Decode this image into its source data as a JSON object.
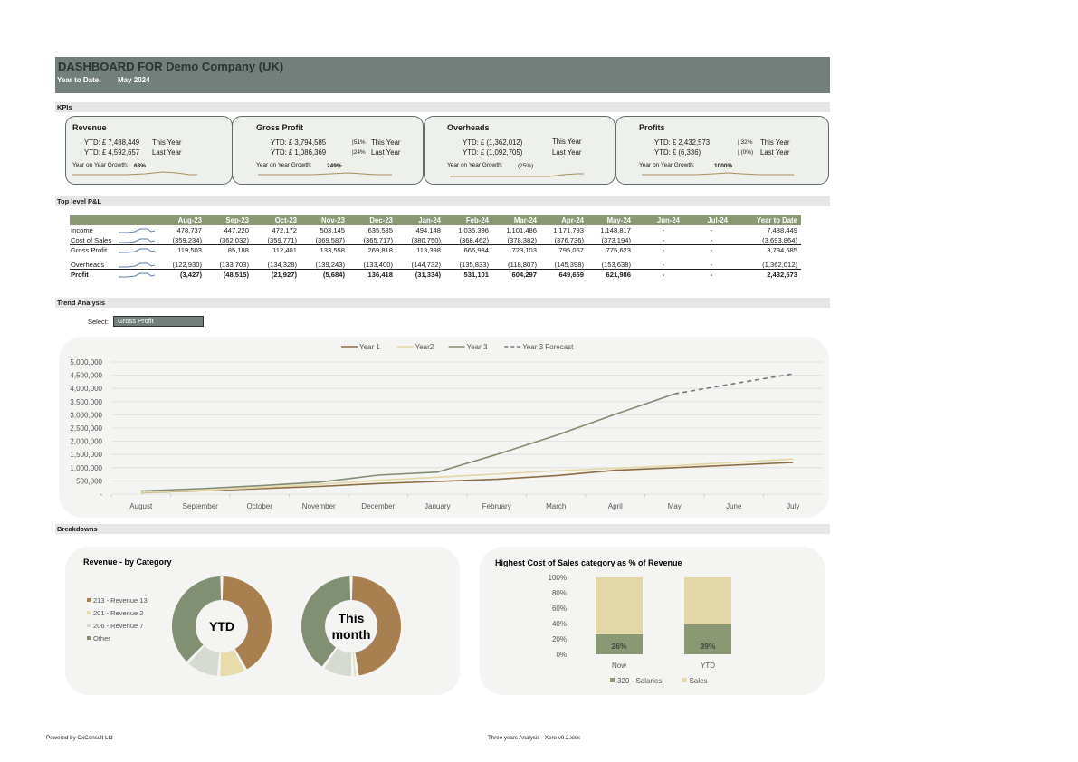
{
  "header": {
    "title": "DASHBOARD FOR  Demo Company (UK)",
    "ytd_label": "Year to Date:",
    "ytd_value": "May 2024"
  },
  "sections": {
    "kpis": "KPIs",
    "pl": "Top level P&L",
    "trend": "Trend Analysis",
    "breakdowns": "Breakdowns"
  },
  "kpis": {
    "revenue": {
      "title": "Revenue",
      "ytd_this": "YTD: £ 7,488,449",
      "this_label": "This Year",
      "ytd_last": "YTD: £ 4,592,657",
      "last_label": "Last Year",
      "yoy_label": "Year on Year Growth:",
      "yoy_value": "63%"
    },
    "gross_profit": {
      "title": "Gross Profit",
      "ytd_this": "YTD: £ 3,794,585",
      "pct_this": "51%",
      "this_label": "This Year",
      "ytd_last": "YTD: £ 1,086,369",
      "pct_last": "24%",
      "last_label": "Last Year",
      "yoy_label": "Year on Year Growth:",
      "yoy_value": "249%"
    },
    "overheads": {
      "title": "Overheads",
      "ytd_this": "YTD: £ (1,362,012)",
      "this_label": "This Year",
      "ytd_last": "YTD: £ (1,092,705)",
      "last_label": "Last Year",
      "yoy_label": "Year on Year Growth:",
      "yoy_value": "(25%)"
    },
    "profits": {
      "title": "Profits",
      "ytd_this": "YTD: £ 2,432,573",
      "pct_this": "32%",
      "this_label": "This Year",
      "ytd_last": "YTD: £ (6,336)",
      "pct_last": "(0%)",
      "last_label": "Last Year",
      "yoy_label": "Year on Year Growth:",
      "yoy_value": "1000%"
    }
  },
  "pl": {
    "columns": [
      "Aug-23",
      "Sep-23",
      "Oct-23",
      "Nov-23",
      "Dec-23",
      "Jan-24",
      "Feb-24",
      "Mar-24",
      "Apr-24",
      "May-24",
      "Jun-24",
      "Jul-24",
      "Year to Date"
    ],
    "rows": [
      {
        "label": "Income",
        "bold": false,
        "values": [
          "478,737",
          "447,220",
          "472,172",
          "503,145",
          "635,535",
          "494,148",
          "1,035,396",
          "1,101,486",
          "1,171,793",
          "1,148,817",
          "-",
          "-",
          "7,488,449"
        ]
      },
      {
        "label": "Cost of Sales",
        "bold": false,
        "values": [
          "(359,234)",
          "(362,032)",
          "(359,771)",
          "(369,587)",
          "(365,717)",
          "(380,750)",
          "(368,462)",
          "(378,382)",
          "(376,736)",
          "(373,194)",
          "-",
          "-",
          "(3,693,864)"
        ]
      },
      {
        "label": "Gross Profit",
        "bold": false,
        "values": [
          "119,503",
          "85,188",
          "112,401",
          "133,558",
          "269,818",
          "113,398",
          "666,934",
          "723,103",
          "795,057",
          "775,623",
          "-",
          "-",
          "3,794,585"
        ]
      },
      {
        "label": "Overheads",
        "bold": false,
        "values": [
          "(122,930)",
          "(133,703)",
          "(134,328)",
          "(139,243)",
          "(133,400)",
          "(144,732)",
          "(135,833)",
          "(118,807)",
          "(145,398)",
          "(153,638)",
          "-",
          "-",
          "(1,362,012)"
        ]
      },
      {
        "label": "Profit",
        "bold": true,
        "values": [
          "(3,427)",
          "(48,515)",
          "(21,927)",
          "(5,684)",
          "136,418",
          "(31,334)",
          "531,101",
          "604,297",
          "649,659",
          "621,986",
          "-",
          "-",
          "2,432,573"
        ]
      }
    ]
  },
  "trend": {
    "select_label": "Select:",
    "select_value": "Gross Profit"
  },
  "chart_data": [
    {
      "type": "line",
      "categories": [
        "August",
        "September",
        "October",
        "November",
        "December",
        "January",
        "February",
        "March",
        "April",
        "May",
        "June",
        "July"
      ],
      "y_ticks": [
        "5,000,000",
        "4,500,000",
        "4,000,000",
        "3,500,000",
        "3,000,000",
        "2,500,000",
        "2,000,000",
        "1,500,000",
        "1,000,000",
        "500,000",
        "-"
      ],
      "ylim": [
        0,
        5000000
      ],
      "grid": true,
      "legend_position": "top",
      "series": [
        {
          "name": "Year 1",
          "color": "#8c6d46",
          "dash": false,
          "values": [
            50000,
            130000,
            210000,
            290000,
            400000,
            480000,
            560000,
            700000,
            900000,
            1000000,
            1100000,
            1200000
          ]
        },
        {
          "name": "Year2",
          "color": "#e3d7a5",
          "dash": false,
          "values": [
            60000,
            140000,
            250000,
            370000,
            520000,
            640000,
            760000,
            880000,
            980000,
            1080000,
            1200000,
            1330000
          ]
        },
        {
          "name": "Year 3",
          "color": "#828c72",
          "dash": false,
          "values": [
            119503,
            204691,
            317092,
            450650,
            720468,
            833866,
            1500800,
            2223903,
            3018960,
            3794583,
            null,
            null
          ]
        },
        {
          "name": "Year 3 Forecast",
          "color": "#777777",
          "dash": true,
          "values": [
            null,
            null,
            null,
            null,
            null,
            null,
            null,
            null,
            null,
            3794583,
            4180000,
            4550000
          ]
        }
      ]
    },
    {
      "type": "pie",
      "title": "Revenue - by Category",
      "center_label": "YTD",
      "legend": [
        "213 - Revenue 13",
        "201 - Revenue 2",
        "206 - Revenue 7",
        "Other"
      ],
      "colors": [
        "#a87f4e",
        "#e8dcaa",
        "#d6dbd1",
        "#818f73"
      ],
      "values": [
        42,
        9,
        11,
        38
      ]
    },
    {
      "type": "pie",
      "center_label_line1": "This",
      "center_label_line2": "month",
      "colors": [
        "#a87f4e",
        "#e8dcaa",
        "#d6dbd1",
        "#818f73"
      ],
      "values": [
        48,
        1.5,
        10,
        40.5
      ]
    },
    {
      "type": "bar",
      "title": "Highest Cost of Sales category as % of Revenue",
      "categories": [
        "Now",
        "YTD"
      ],
      "y_ticks": [
        "100%",
        "80%",
        "60%",
        "40%",
        "20%",
        "0%"
      ],
      "ylim": [
        0,
        100
      ],
      "series": [
        {
          "name": "320 - Salaries",
          "color": "#8a9873",
          "values": [
            26,
            39
          ],
          "labels": [
            "26%",
            "39%"
          ]
        },
        {
          "name": "Sales",
          "color": "#e3d7a5",
          "values": [
            74,
            61
          ]
        }
      ]
    }
  ],
  "footer": {
    "left": "Powered by OxConsult Ltd",
    "middle": "Three years Analysis - Xero v0.2.xlsx"
  }
}
